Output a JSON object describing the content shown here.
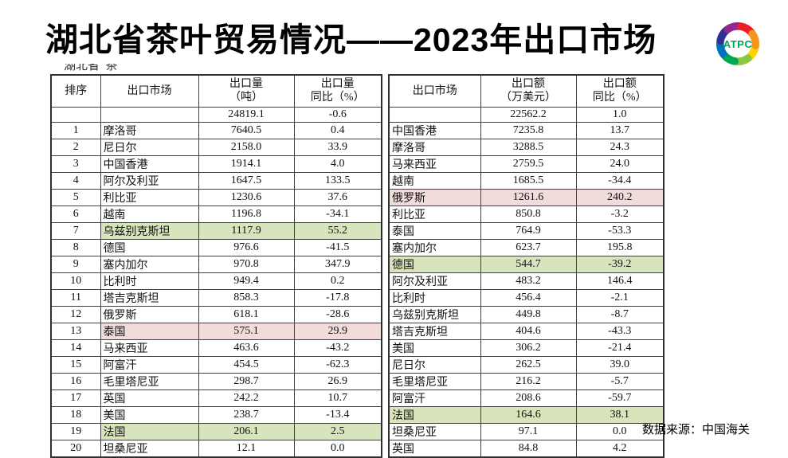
{
  "title": "湖北省茶叶贸易情况——2023年出口市场",
  "clipped_fragment": "湖北省  茶",
  "source_note": "数据来源：中国海关",
  "palette": {
    "green": "#d8e4bc",
    "pink": "#f2dcdb"
  },
  "logo": {
    "label": "ATPC",
    "label_color": "#00a651",
    "ring_colors": [
      "#FFD200",
      "#8DC63F",
      "#00A651",
      "#0072BC",
      "#2E3192",
      "#92278F",
      "#ED1C24",
      "#F7941D"
    ]
  },
  "left_table": {
    "col_headers": {
      "rank": "排序",
      "market": "出口市场",
      "value_l1": "出口量",
      "value_l2": "（吨）",
      "yoy_l1": "出口量",
      "yoy_l2": "同比（%）"
    },
    "total": {
      "value": "24819.1",
      "yoy": "-0.6"
    },
    "rows": [
      {
        "rank": "1",
        "market": "摩洛哥",
        "value": "7640.5",
        "yoy": "0.4",
        "highlight": null
      },
      {
        "rank": "2",
        "market": "尼日尔",
        "value": "2158.0",
        "yoy": "33.9",
        "highlight": null
      },
      {
        "rank": "3",
        "market": "中国香港",
        "value": "1914.1",
        "yoy": "4.0",
        "highlight": null
      },
      {
        "rank": "4",
        "market": "阿尔及利亚",
        "value": "1647.5",
        "yoy": "133.5",
        "highlight": null
      },
      {
        "rank": "5",
        "market": "利比亚",
        "value": "1230.6",
        "yoy": "37.6",
        "highlight": null
      },
      {
        "rank": "6",
        "market": "越南",
        "value": "1196.8",
        "yoy": "-34.1",
        "highlight": null
      },
      {
        "rank": "7",
        "market": "乌兹别克斯坦",
        "value": "1117.9",
        "yoy": "55.2",
        "highlight": "green"
      },
      {
        "rank": "8",
        "market": "德国",
        "value": "976.6",
        "yoy": "-41.5",
        "highlight": null
      },
      {
        "rank": "9",
        "market": "塞内加尔",
        "value": "970.8",
        "yoy": "347.9",
        "highlight": null
      },
      {
        "rank": "10",
        "market": "比利时",
        "value": "949.4",
        "yoy": "0.2",
        "highlight": null
      },
      {
        "rank": "11",
        "market": "塔吉克斯坦",
        "value": "858.3",
        "yoy": "-17.8",
        "highlight": null
      },
      {
        "rank": "12",
        "market": "俄罗斯",
        "value": "618.1",
        "yoy": "-28.6",
        "highlight": null
      },
      {
        "rank": "13",
        "market": "泰国",
        "value": "575.1",
        "yoy": "29.9",
        "highlight": "pink"
      },
      {
        "rank": "14",
        "market": "马来西亚",
        "value": "463.6",
        "yoy": "-43.2",
        "highlight": null
      },
      {
        "rank": "15",
        "market": "阿富汗",
        "value": "454.5",
        "yoy": "-62.3",
        "highlight": null
      },
      {
        "rank": "16",
        "market": "毛里塔尼亚",
        "value": "298.7",
        "yoy": "26.9",
        "highlight": null
      },
      {
        "rank": "17",
        "market": "英国",
        "value": "242.2",
        "yoy": "10.7",
        "highlight": null
      },
      {
        "rank": "18",
        "market": "美国",
        "value": "238.7",
        "yoy": "-13.4",
        "highlight": null
      },
      {
        "rank": "19",
        "market": "法国",
        "value": "206.1",
        "yoy": "2.5",
        "highlight": "green"
      },
      {
        "rank": "20",
        "market": "坦桑尼亚",
        "value": "12.1",
        "yoy": "0.0",
        "highlight": null
      }
    ]
  },
  "right_table": {
    "col_headers": {
      "market": "出口市场",
      "value_l1": "出口额",
      "value_l2": "（万美元）",
      "yoy_l1": "出口额",
      "yoy_l2": "同比（%）"
    },
    "total": {
      "value": "22562.2",
      "yoy": "1.0"
    },
    "rows": [
      {
        "market": "中国香港",
        "value": "7235.8",
        "yoy": "13.7",
        "highlight": null
      },
      {
        "market": "摩洛哥",
        "value": "3288.5",
        "yoy": "24.3",
        "highlight": null
      },
      {
        "market": "马来西亚",
        "value": "2759.5",
        "yoy": "24.0",
        "highlight": null
      },
      {
        "market": "越南",
        "value": "1685.5",
        "yoy": "-34.4",
        "highlight": null
      },
      {
        "market": "俄罗斯",
        "value": "1261.6",
        "yoy": "240.2",
        "highlight": "pink"
      },
      {
        "market": "利比亚",
        "value": "850.8",
        "yoy": "-3.2",
        "highlight": null
      },
      {
        "market": "泰国",
        "value": "764.9",
        "yoy": "-53.3",
        "highlight": null
      },
      {
        "market": "塞内加尔",
        "value": "623.7",
        "yoy": "195.8",
        "highlight": null
      },
      {
        "market": "德国",
        "value": "544.7",
        "yoy": "-39.2",
        "highlight": "green"
      },
      {
        "market": "阿尔及利亚",
        "value": "483.2",
        "yoy": "146.4",
        "highlight": null
      },
      {
        "market": "比利时",
        "value": "456.4",
        "yoy": "-2.1",
        "highlight": null
      },
      {
        "market": "乌兹别克斯坦",
        "value": "449.8",
        "yoy": "-8.7",
        "highlight": null
      },
      {
        "market": "塔吉克斯坦",
        "value": "404.6",
        "yoy": "-43.3",
        "highlight": null
      },
      {
        "market": "美国",
        "value": "306.2",
        "yoy": "-21.4",
        "highlight": null
      },
      {
        "market": "尼日尔",
        "value": "262.5",
        "yoy": "39.0",
        "highlight": null
      },
      {
        "market": "毛里塔尼亚",
        "value": "216.2",
        "yoy": "-5.7",
        "highlight": null
      },
      {
        "market": "阿富汗",
        "value": "208.6",
        "yoy": "-59.7",
        "highlight": null
      },
      {
        "market": "法国",
        "value": "164.6",
        "yoy": "38.1",
        "highlight": "green"
      },
      {
        "market": "坦桑尼亚",
        "value": "97.1",
        "yoy": "0.0",
        "highlight": null
      },
      {
        "market": "英国",
        "value": "84.8",
        "yoy": "4.2",
        "highlight": null
      }
    ]
  }
}
